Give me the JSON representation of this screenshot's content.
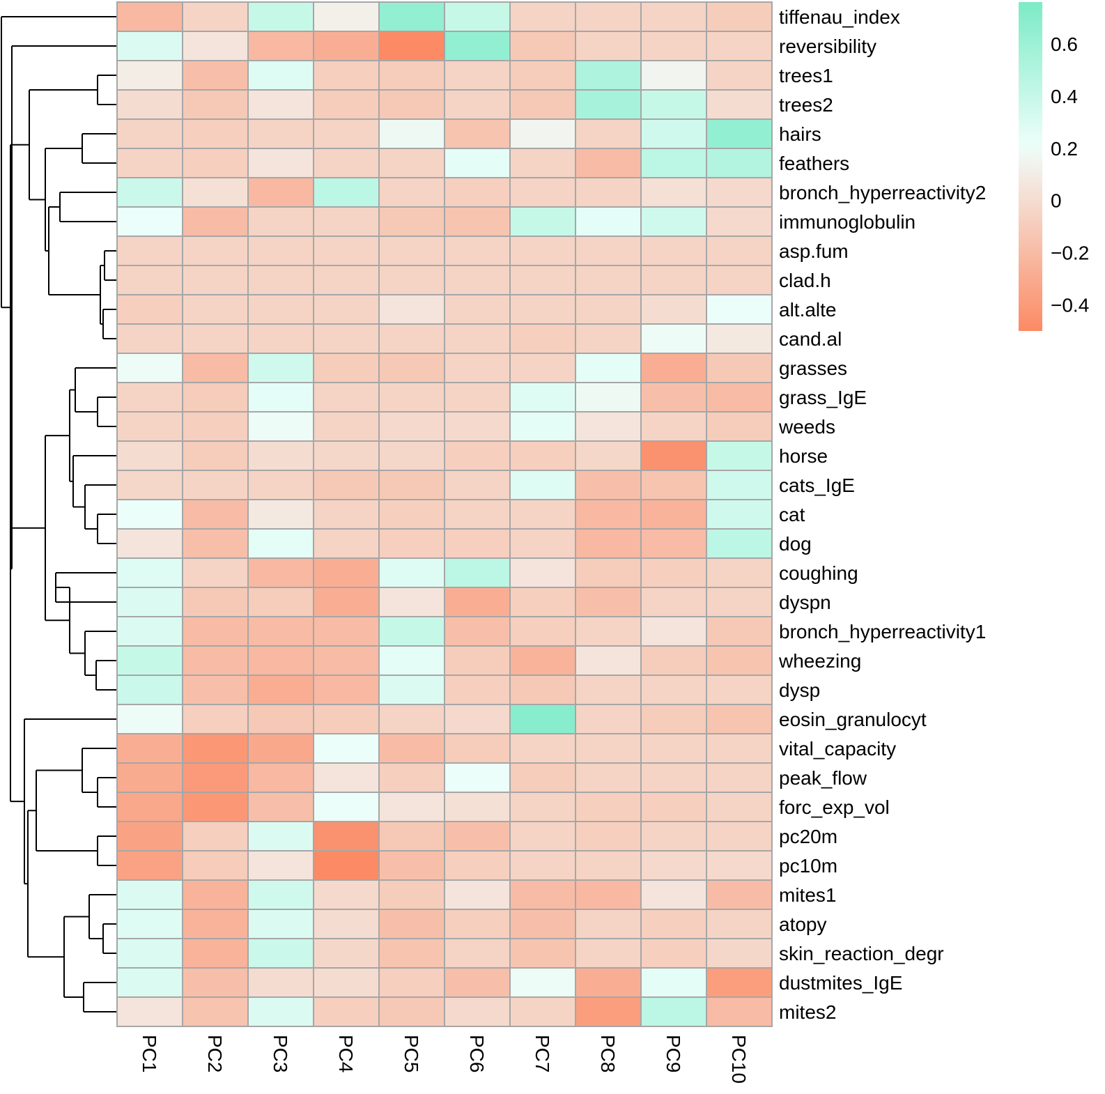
{
  "chart_data": {
    "type": "heatmap",
    "title": "",
    "columns": [
      "PC1",
      "PC2",
      "PC3",
      "PC4",
      "PC5",
      "PC6",
      "PC7",
      "PC8",
      "PC9",
      "PC10"
    ],
    "rows": [
      "tiffenau_index",
      "reversibility",
      "trees1",
      "trees2",
      "hairs",
      "feathers",
      "bronch_hyperreactivity2",
      "immunoglobulin",
      "asp.fum",
      "clad.h",
      "alt.alte",
      "cand.al",
      "grasses",
      "grass_IgE",
      "weeds",
      "horse",
      "cats_IgE",
      "cat",
      "dog",
      "coughing",
      "dyspn",
      "bronch_hyperreactivity1",
      "wheezing",
      "dysp",
      "eosin_granulocyt",
      "vital_capacity",
      "peak_flow",
      "forc_exp_vol",
      "pc20m",
      "pc10m",
      "mites1",
      "atopy",
      "skin_reaction_degr",
      "dustmites_IgE",
      "mites2"
    ],
    "values": [
      [
        -0.22,
        -0.05,
        0.4,
        0.12,
        0.65,
        0.4,
        -0.05,
        -0.05,
        -0.05,
        -0.1
      ],
      [
        0.3,
        0.05,
        -0.22,
        -0.28,
        -0.5,
        0.65,
        -0.12,
        -0.05,
        -0.05,
        -0.05
      ],
      [
        0.1,
        -0.18,
        0.28,
        -0.08,
        -0.1,
        -0.05,
        -0.1,
        0.52,
        0.15,
        -0.05
      ],
      [
        0.0,
        -0.12,
        0.05,
        -0.1,
        -0.12,
        -0.05,
        -0.12,
        0.55,
        0.4,
        0.0
      ],
      [
        -0.05,
        -0.08,
        -0.05,
        -0.05,
        0.18,
        -0.15,
        0.15,
        -0.05,
        0.35,
        0.65
      ],
      [
        -0.05,
        -0.08,
        0.05,
        -0.05,
        -0.05,
        0.25,
        -0.05,
        -0.2,
        0.45,
        0.5
      ],
      [
        0.38,
        0.02,
        -0.22,
        0.45,
        -0.05,
        -0.08,
        -0.05,
        -0.05,
        0.02,
        -0.02
      ],
      [
        0.22,
        -0.2,
        -0.05,
        -0.05,
        -0.12,
        -0.15,
        0.4,
        0.25,
        0.35,
        -0.02
      ],
      [
        -0.05,
        -0.05,
        -0.05,
        -0.05,
        -0.05,
        -0.05,
        -0.05,
        -0.05,
        -0.05,
        -0.05
      ],
      [
        -0.05,
        -0.05,
        -0.05,
        -0.05,
        -0.05,
        -0.05,
        -0.05,
        -0.05,
        -0.05,
        -0.05
      ],
      [
        -0.08,
        -0.05,
        -0.05,
        -0.05,
        0.05,
        -0.05,
        -0.05,
        -0.05,
        0.0,
        0.22
      ],
      [
        -0.05,
        -0.05,
        -0.05,
        -0.05,
        -0.05,
        -0.05,
        -0.08,
        -0.05,
        0.2,
        0.08
      ],
      [
        0.2,
        -0.2,
        0.35,
        -0.1,
        -0.12,
        -0.05,
        -0.05,
        0.25,
        -0.28,
        -0.12
      ],
      [
        -0.05,
        -0.1,
        0.25,
        -0.05,
        -0.05,
        -0.05,
        0.28,
        0.18,
        -0.18,
        -0.2
      ],
      [
        -0.05,
        -0.08,
        0.2,
        -0.05,
        -0.02,
        -0.02,
        0.25,
        0.05,
        -0.05,
        -0.1
      ],
      [
        0.0,
        -0.1,
        0.0,
        -0.03,
        -0.03,
        -0.08,
        -0.08,
        -0.03,
        -0.45,
        0.4
      ],
      [
        -0.03,
        -0.05,
        -0.05,
        -0.12,
        -0.12,
        -0.05,
        0.28,
        -0.18,
        -0.15,
        0.35
      ],
      [
        0.22,
        -0.2,
        0.08,
        -0.05,
        -0.08,
        -0.05,
        -0.05,
        -0.22,
        -0.25,
        0.35
      ],
      [
        0.05,
        -0.18,
        0.25,
        -0.05,
        -0.08,
        -0.08,
        -0.05,
        -0.22,
        -0.2,
        0.45
      ],
      [
        0.28,
        -0.05,
        -0.22,
        -0.28,
        0.28,
        0.45,
        0.05,
        -0.1,
        -0.08,
        -0.05
      ],
      [
        0.3,
        -0.12,
        -0.1,
        -0.28,
        0.05,
        -0.28,
        -0.08,
        -0.18,
        -0.05,
        -0.05
      ],
      [
        0.3,
        -0.2,
        -0.2,
        -0.2,
        0.4,
        -0.18,
        -0.08,
        -0.05,
        0.05,
        -0.12
      ],
      [
        0.4,
        -0.2,
        -0.22,
        -0.2,
        0.25,
        -0.1,
        -0.25,
        0.05,
        -0.1,
        -0.15
      ],
      [
        0.38,
        -0.18,
        -0.28,
        -0.22,
        0.3,
        -0.08,
        -0.12,
        -0.05,
        -0.05,
        -0.05
      ],
      [
        0.2,
        -0.08,
        -0.12,
        -0.1,
        -0.05,
        -0.02,
        0.7,
        -0.05,
        -0.1,
        -0.15
      ],
      [
        -0.28,
        -0.42,
        -0.32,
        0.22,
        -0.2,
        -0.1,
        -0.05,
        -0.05,
        -0.05,
        -0.05
      ],
      [
        -0.3,
        -0.4,
        -0.22,
        0.05,
        -0.08,
        0.22,
        -0.1,
        -0.05,
        -0.05,
        -0.05
      ],
      [
        -0.32,
        -0.42,
        -0.18,
        0.22,
        0.05,
        0.02,
        -0.05,
        -0.08,
        -0.08,
        -0.05
      ],
      [
        -0.35,
        -0.08,
        0.3,
        -0.45,
        -0.12,
        -0.18,
        -0.05,
        -0.08,
        -0.05,
        -0.05
      ],
      [
        -0.35,
        -0.1,
        0.05,
        -0.5,
        -0.18,
        -0.08,
        -0.05,
        -0.05,
        -0.02,
        -0.02
      ],
      [
        0.3,
        -0.25,
        0.35,
        -0.02,
        -0.1,
        0.05,
        -0.2,
        -0.22,
        0.05,
        -0.2
      ],
      [
        0.28,
        -0.25,
        0.3,
        0.0,
        -0.18,
        -0.08,
        -0.18,
        -0.05,
        -0.08,
        -0.05
      ],
      [
        0.3,
        -0.25,
        0.38,
        -0.03,
        -0.15,
        -0.05,
        -0.15,
        -0.05,
        -0.08,
        -0.03
      ],
      [
        0.3,
        -0.18,
        0.0,
        0.0,
        -0.08,
        -0.18,
        0.2,
        -0.28,
        0.25,
        -0.38
      ],
      [
        0.05,
        -0.15,
        0.3,
        -0.08,
        -0.12,
        -0.02,
        -0.05,
        -0.38,
        0.45,
        -0.2
      ]
    ],
    "colorbar": {
      "min": -0.5,
      "max": 0.76,
      "ticks": [
        0.6,
        0.4,
        0.2,
        0,
        -0.2,
        -0.4
      ],
      "tick_labels": [
        "0.6",
        "0.4",
        "0.2",
        "0",
        "−0.2",
        "−0.4"
      ],
      "low_color": "#fc8a64",
      "mid_color": "#f3f0ea",
      "mid_value": 0.12,
      "near_mid_high_color": "#ecfefa",
      "high_color": "#7cebc6"
    }
  }
}
